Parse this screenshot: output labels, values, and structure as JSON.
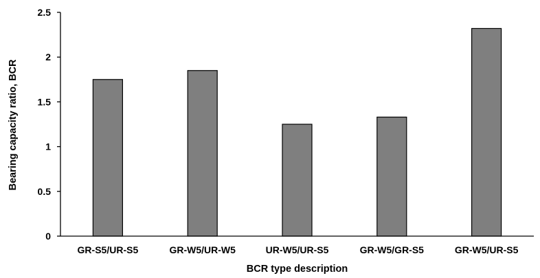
{
  "chart_data": {
    "type": "bar",
    "title": "",
    "xlabel": "BCR type description",
    "ylabel": "Bearing capacity ratio, BCR",
    "categories": [
      "GR-S5/UR-S5",
      "GR-W5/UR-W5",
      "UR-W5/UR-S5",
      "GR-W5/GR-S5",
      "GR-W5/UR-S5"
    ],
    "values": [
      1.75,
      1.85,
      1.25,
      1.33,
      2.32
    ],
    "ylim": [
      0,
      2.5
    ],
    "yticks": [
      0,
      0.5,
      1,
      1.5,
      2,
      2.5
    ],
    "ytick_labels": [
      "0",
      "0.5",
      "1",
      "1.5",
      "2",
      "2.5"
    ],
    "grid": false,
    "legend": "none",
    "bar_color": "#7f7f7f",
    "bar_edge_color": "#000000",
    "axis_color": "#000000"
  }
}
